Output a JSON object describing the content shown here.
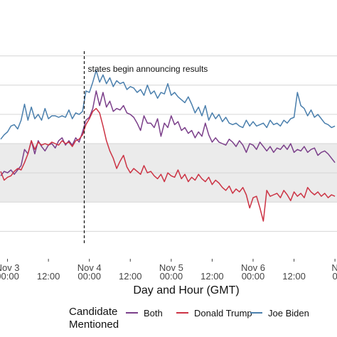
{
  "chart_data": {
    "type": "line",
    "xlabel": "Day and Hour (GMT)",
    "ylabel": "",
    "x_ticks": [
      {
        "hour": 0,
        "day": "Nov 3",
        "time": "00:00"
      },
      {
        "hour": 12,
        "day": "",
        "time": "12:00"
      },
      {
        "hour": 24,
        "day": "Nov 4",
        "time": "00:00"
      },
      {
        "hour": 36,
        "day": "",
        "time": "12:00"
      },
      {
        "hour": 48,
        "day": "Nov 5",
        "time": "00:00"
      },
      {
        "hour": 60,
        "day": "",
        "time": "12:00"
      },
      {
        "hour": 72,
        "day": "Nov 6",
        "time": "00:00"
      },
      {
        "hour": 84,
        "day": "",
        "time": "12:00"
      },
      {
        "hour": 96,
        "day": "N",
        "time": "0"
      }
    ],
    "xlim": [
      -2.2,
      96.6
    ],
    "ylim": [
      0,
      7
    ],
    "grid": true,
    "shaded_band": [
      1.5,
      3.5
    ],
    "annotation": {
      "x": 22.5,
      "text": "states begin announcing results"
    },
    "legend": {
      "title": "Candidate\nMentioned",
      "placement": "bottom"
    },
    "series": [
      {
        "name": "Both",
        "color": "#7b3f8a",
        "x": [
          -2,
          -1,
          0,
          1,
          2,
          3,
          4,
          5,
          6,
          7,
          8,
          9,
          10,
          11,
          12,
          13,
          14,
          15,
          16,
          17,
          18,
          19,
          20,
          21,
          22,
          23,
          24,
          25,
          26,
          27,
          28,
          29,
          30,
          31,
          32,
          33,
          34,
          35,
          36,
          37,
          38,
          39,
          40,
          41,
          42,
          43,
          44,
          45,
          46,
          47,
          48,
          49,
          50,
          51,
          52,
          53,
          54,
          55,
          56,
          57,
          58,
          59,
          60,
          61,
          62,
          63,
          64,
          65,
          66,
          67,
          68,
          69,
          70,
          71,
          72,
          73,
          74,
          75,
          76,
          77,
          78,
          79,
          80,
          81,
          82,
          83,
          84,
          85,
          86,
          87,
          88,
          89,
          90,
          91,
          92,
          93,
          94,
          95,
          96
        ],
        "y": [
          2.4,
          2.55,
          2.5,
          2.6,
          2.45,
          2.6,
          2.75,
          3.3,
          3.15,
          3.6,
          3.15,
          3.6,
          3.4,
          3.25,
          3.45,
          3.5,
          3.35,
          3.6,
          3.7,
          3.45,
          3.6,
          3.45,
          3.7,
          3.55,
          3.9,
          4.3,
          4.4,
          4.7,
          5.3,
          4.8,
          5.25,
          4.75,
          4.95,
          4.6,
          4.7,
          4.65,
          4.8,
          4.55,
          4.5,
          4.4,
          4.2,
          3.95,
          4.45,
          4.2,
          4.2,
          4.05,
          4.35,
          3.75,
          4.2,
          4.05,
          4.45,
          4.15,
          4.25,
          3.95,
          4.05,
          3.85,
          3.95,
          3.7,
          3.9,
          3.75,
          4.2,
          3.8,
          3.55,
          3.7,
          3.55,
          3.5,
          3.45,
          3.65,
          3.55,
          3.4,
          3.6,
          3.45,
          3.2,
          3.5,
          3.45,
          3.3,
          3.55,
          3.4,
          3.25,
          3.4,
          3.2,
          3.35,
          3.3,
          3.45,
          3.3,
          3.5,
          3.2,
          3.3,
          3.25,
          3.4,
          3.2,
          3.3,
          3.35,
          3.1,
          3.2,
          3.25,
          3.15,
          3.0,
          2.85
        ]
      },
      {
        "name": "Donald Trump",
        "color": "#cc3344",
        "x": [
          -2,
          -1,
          0,
          1,
          2,
          3,
          4,
          5,
          6,
          7,
          8,
          9,
          10,
          11,
          12,
          13,
          14,
          15,
          16,
          17,
          18,
          19,
          20,
          21,
          22,
          23,
          24,
          25,
          26,
          27,
          28,
          29,
          30,
          31,
          32,
          33,
          34,
          35,
          36,
          37,
          38,
          39,
          40,
          41,
          42,
          43,
          44,
          45,
          46,
          47,
          48,
          49,
          50,
          51,
          52,
          53,
          54,
          55,
          56,
          57,
          58,
          59,
          60,
          61,
          62,
          63,
          64,
          65,
          66,
          67,
          68,
          69,
          70,
          71,
          72,
          73,
          74,
          75,
          76,
          77,
          78,
          79,
          80,
          81,
          82,
          83,
          84,
          85,
          86,
          87,
          88,
          89,
          90,
          91,
          92,
          93,
          94,
          95,
          96
        ],
        "y": [
          2.55,
          2.25,
          2.35,
          2.4,
          2.55,
          2.65,
          2.6,
          2.85,
          3.15,
          3.6,
          3.3,
          3.55,
          3.45,
          3.5,
          3.45,
          3.55,
          3.5,
          3.45,
          3.6,
          3.5,
          3.55,
          3.4,
          3.6,
          3.65,
          3.8,
          4.15,
          4.35,
          4.6,
          4.7,
          4.55,
          4.1,
          3.6,
          3.25,
          3.0,
          2.65,
          2.9,
          3.1,
          2.7,
          2.5,
          2.65,
          2.55,
          2.45,
          2.75,
          2.5,
          2.55,
          2.4,
          2.3,
          2.45,
          2.2,
          2.5,
          2.4,
          2.35,
          2.6,
          2.3,
          2.45,
          2.2,
          2.35,
          2.25,
          2.45,
          2.3,
          2.2,
          2.35,
          2.1,
          2.25,
          2.15,
          2.0,
          1.9,
          2.05,
          1.8,
          1.95,
          1.85,
          2.0,
          1.75,
          1.3,
          1.65,
          1.7,
          1.3,
          0.85,
          1.9,
          1.7,
          1.75,
          1.8,
          1.65,
          1.9,
          1.75,
          1.55,
          1.85,
          1.7,
          1.8,
          1.65,
          2.0,
          1.85,
          1.75,
          1.85,
          1.7,
          1.8,
          1.65,
          1.75,
          1.7
        ]
      },
      {
        "name": "Joe Biden",
        "color": "#4a7fad",
        "x": [
          -2,
          -1,
          0,
          1,
          2,
          3,
          4,
          5,
          6,
          7,
          8,
          9,
          10,
          11,
          12,
          13,
          14,
          15,
          16,
          17,
          18,
          19,
          20,
          21,
          22,
          23,
          24,
          25,
          26,
          27,
          28,
          29,
          30,
          31,
          32,
          33,
          34,
          35,
          36,
          37,
          38,
          39,
          40,
          41,
          42,
          43,
          44,
          45,
          46,
          47,
          48,
          49,
          50,
          51,
          52,
          53,
          54,
          55,
          56,
          57,
          58,
          59,
          60,
          61,
          62,
          63,
          64,
          65,
          66,
          67,
          68,
          69,
          70,
          71,
          72,
          73,
          74,
          75,
          76,
          77,
          78,
          79,
          80,
          81,
          82,
          83,
          84,
          85,
          86,
          87,
          88,
          89,
          90,
          91,
          92,
          93,
          94,
          95,
          96
        ],
        "y": [
          3.65,
          3.8,
          3.9,
          4.1,
          4.15,
          4.0,
          4.3,
          4.85,
          4.3,
          4.75,
          4.35,
          4.5,
          4.3,
          4.7,
          4.35,
          4.45,
          4.45,
          4.4,
          4.45,
          4.4,
          4.65,
          4.35,
          4.55,
          4.5,
          4.6,
          5.3,
          5.25,
          5.6,
          6.0,
          5.6,
          5.85,
          5.55,
          5.75,
          5.45,
          5.65,
          5.55,
          5.6,
          5.35,
          5.45,
          5.4,
          5.25,
          5.35,
          5.15,
          5.5,
          5.2,
          5.3,
          5.05,
          5.25,
          5.2,
          5.55,
          5.15,
          5.25,
          5.1,
          5.0,
          4.9,
          5.1,
          4.85,
          4.55,
          4.75,
          4.45,
          4.8,
          4.3,
          4.55,
          4.35,
          4.5,
          4.25,
          4.4,
          4.2,
          4.15,
          4.2,
          4.1,
          4.05,
          4.3,
          4.1,
          4.25,
          4.1,
          4.15,
          4.2,
          4.05,
          4.3,
          4.15,
          4.2,
          4.1,
          4.3,
          4.2,
          4.35,
          4.4,
          5.25,
          4.8,
          4.7,
          4.45,
          4.65,
          4.4,
          4.5,
          4.35,
          4.2,
          4.15,
          4.05,
          4.1
        ]
      }
    ]
  }
}
